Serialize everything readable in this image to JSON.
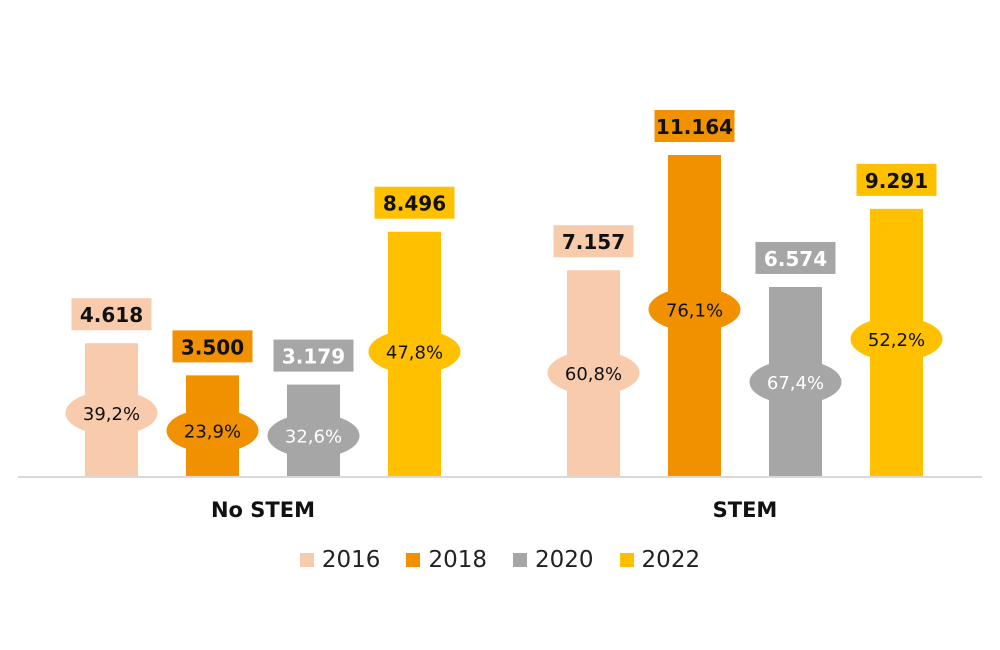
{
  "chart_data": {
    "type": "bar",
    "title": "",
    "xlabel": "",
    "ylabel": "",
    "categories": [
      "No STEM",
      "STEM"
    ],
    "ylim": [
      0,
      11.164
    ],
    "grid": false,
    "legend_position": "bottom",
    "series": [
      {
        "name": "2016",
        "color": "#F8CBAD",
        "text_color": "#111111",
        "values": [
          4.618,
          7.157
        ],
        "value_labels": [
          "4.618",
          "7.157"
        ],
        "percent_labels": [
          "39,2%",
          "60,8%"
        ]
      },
      {
        "name": "2018",
        "color": "#F29100",
        "text_color": "#111111",
        "values": [
          3.5,
          11.164
        ],
        "value_labels": [
          "3.500",
          "11.164"
        ],
        "percent_labels": [
          "23,9%",
          "76,1%"
        ]
      },
      {
        "name": "2020",
        "color": "#A6A6A6",
        "text_color": "#FFFFFF",
        "values": [
          3.179,
          6.574
        ],
        "value_labels": [
          "3.179",
          "6.574"
        ],
        "percent_labels": [
          "32,6%",
          "67,4%"
        ]
      },
      {
        "name": "2022",
        "color": "#FFC000",
        "text_color": "#111111",
        "values": [
          8.496,
          9.291
        ],
        "value_labels": [
          "8.496",
          "9.291"
        ],
        "percent_labels": [
          "47,8%",
          "52,2%"
        ]
      }
    ]
  }
}
